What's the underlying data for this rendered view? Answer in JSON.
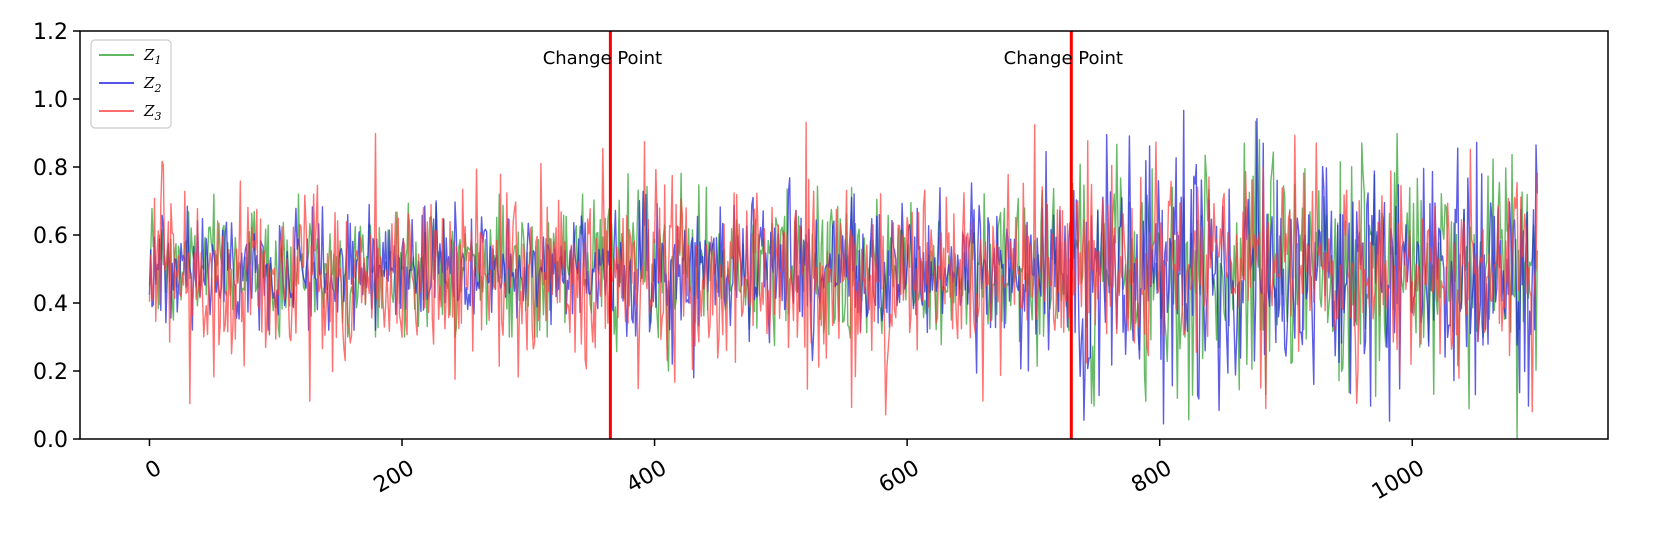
{
  "chart_data": {
    "type": "line",
    "title": "",
    "xlabel": "",
    "ylabel": "",
    "xlim": [
      -55,
      1155
    ],
    "ylim": [
      0.0,
      1.2
    ],
    "x_ticks": [
      0,
      200,
      400,
      600,
      800,
      1000
    ],
    "y_ticks": [
      0.0,
      0.2,
      0.4,
      0.6,
      0.8,
      1.0,
      1.2
    ],
    "x_tick_labels": [
      "0",
      "200",
      "400",
      "600",
      "800",
      "1000"
    ],
    "y_tick_labels": [
      "0.0",
      "0.2",
      "0.4",
      "0.6",
      "0.8",
      "1.0",
      "1.2"
    ],
    "grid": false,
    "legend": {
      "position": "top-left",
      "entries": [
        {
          "base": "Z",
          "sub": "1",
          "color": "#2ca02c"
        },
        {
          "base": "Z",
          "sub": "2",
          "color": "#1f1fdd"
        },
        {
          "base": "Z",
          "sub": "3",
          "color": "#ff3b3b"
        }
      ]
    },
    "change_points": [
      {
        "x": 365,
        "label": "Change Point",
        "color": "#ff0000"
      },
      {
        "x": 730,
        "label": "Change Point",
        "color": "#ff0000"
      }
    ],
    "n_points": 1100,
    "series": [
      {
        "name": "Z1",
        "color": "#2ca02c",
        "segments": [
          {
            "x_start": 0,
            "x_end": 365,
            "mean": 0.51,
            "amplitude": 0.09,
            "min": 0.3,
            "max": 0.72
          },
          {
            "x_start": 365,
            "x_end": 730,
            "mean": 0.5,
            "amplitude": 0.11,
            "min": 0.2,
            "max": 0.92
          },
          {
            "x_start": 730,
            "x_end": 1100,
            "mean": 0.5,
            "amplitude": 0.17,
            "min": 0.0,
            "max": 1.0
          }
        ]
      },
      {
        "name": "Z2",
        "color": "#1f1fdd",
        "segments": [
          {
            "x_start": 0,
            "x_end": 365,
            "mean": 0.5,
            "amplitude": 0.08,
            "min": 0.32,
            "max": 0.7
          },
          {
            "x_start": 365,
            "x_end": 730,
            "mean": 0.5,
            "amplitude": 0.11,
            "min": 0.18,
            "max": 0.95
          },
          {
            "x_start": 730,
            "x_end": 1100,
            "mean": 0.5,
            "amplitude": 0.18,
            "min": 0.0,
            "max": 1.0
          }
        ]
      },
      {
        "name": "Z3",
        "color": "#ff3b3b",
        "segments": [
          {
            "x_start": 0,
            "x_end": 365,
            "mean": 0.48,
            "amplitude": 0.14,
            "min": 0.03,
            "max": 0.91
          },
          {
            "x_start": 365,
            "x_end": 730,
            "mean": 0.48,
            "amplitude": 0.14,
            "min": 0.0,
            "max": 1.0
          },
          {
            "x_start": 730,
            "x_end": 1100,
            "mean": 0.5,
            "amplitude": 0.14,
            "min": 0.08,
            "max": 0.92
          }
        ]
      }
    ]
  }
}
